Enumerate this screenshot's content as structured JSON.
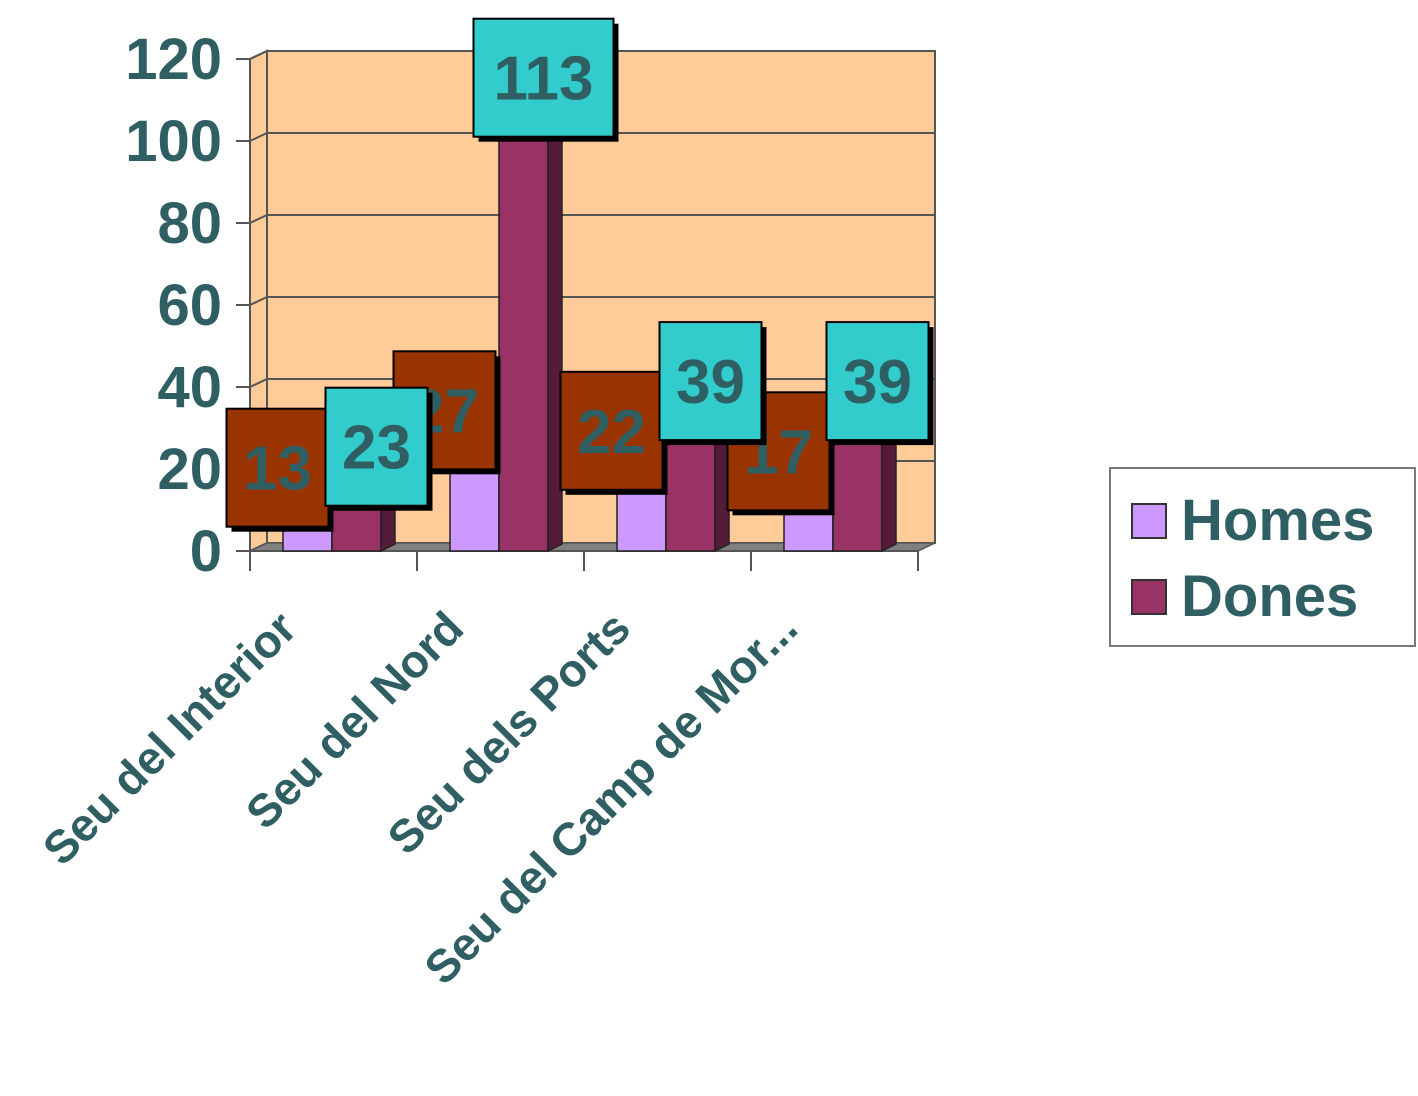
{
  "chart_data": {
    "type": "bar",
    "categories": [
      "Seu del Interior",
      "Seu del Nord",
      "Seu dels Ports",
      "Seu del Camp de Mor..."
    ],
    "series": [
      {
        "name": "Homes",
        "values": [
          13,
          27,
          22,
          17
        ],
        "color": "#cc99ff"
      },
      {
        "name": "Dones",
        "values": [
          23,
          113,
          39,
          39
        ],
        "color": "#993366"
      }
    ],
    "label_colors": {
      "Homes": "#993300",
      "Dones": "#33cccc"
    },
    "title": "",
    "xlabel": "",
    "ylabel": "",
    "ylim": [
      0,
      120
    ],
    "yticks": [
      "0",
      "20",
      "40",
      "60",
      "80",
      "100",
      "120"
    ],
    "grid": true,
    "legend": "right",
    "colors": {
      "plot_background": "#ffcc99",
      "text": "#2f5f62",
      "floor": "#808080"
    }
  }
}
